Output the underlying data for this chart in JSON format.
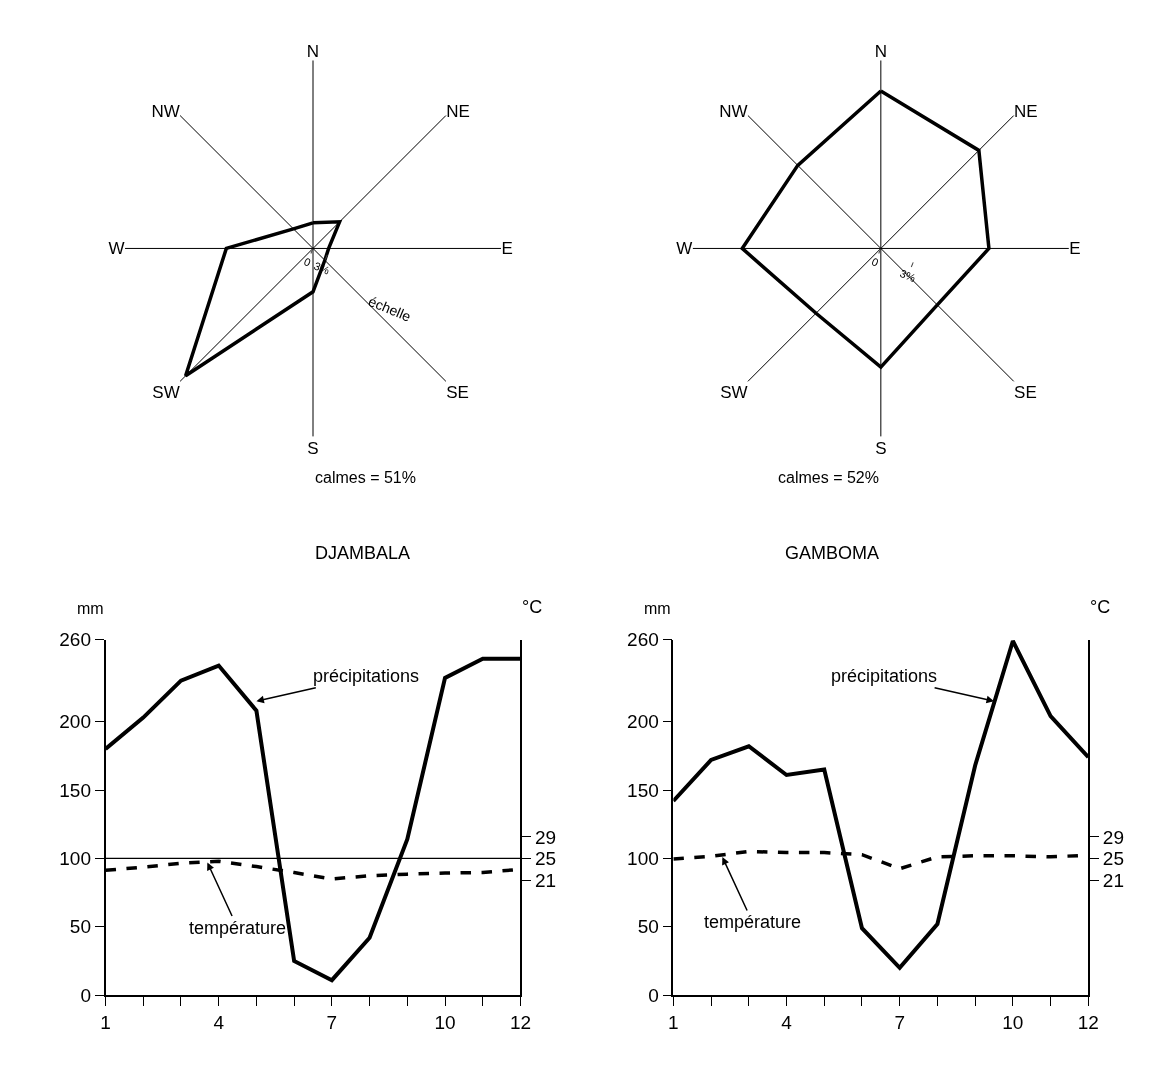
{
  "chart_data": [
    {
      "type": "radar",
      "categories": [
        "N",
        "NE",
        "E",
        "SE",
        "S",
        "SW",
        "W",
        "NW"
      ],
      "ylim": [
        0,
        36
      ],
      "yticks": [
        0,
        {
          "value": 3,
          "label": "3%"
        }
      ],
      "ylabel": "échelle",
      "annotations": [
        "calmes = 51%"
      ],
      "series": [
        {
          "color": "#000000",
          "values": [
            4.9,
            7.2,
            3.0,
            3.2,
            8.3,
            34.5,
            16.6,
            5.3
          ]
        }
      ]
    },
    {
      "type": "radar",
      "categories": [
        "N",
        "NE",
        "E",
        "SE",
        "S",
        "SW",
        "W",
        "NW"
      ],
      "ylim": [
        0,
        16
      ],
      "yticks": [
        0,
        {
          "value": 3,
          "label": "3%"
        }
      ],
      "annotations": [
        "calmes = 52%"
      ],
      "series": [
        {
          "color": "#000000",
          "values": [
            13.4,
            11.8,
            9.2,
            6.8,
            10.1,
            7.8,
            11.8,
            10.0
          ]
        }
      ]
    },
    {
      "type": "line",
      "title": "DJAMBALA",
      "ylabel": "mm",
      "y2label": "°C",
      "x": [
        1,
        2,
        3,
        4,
        5,
        6,
        7,
        8,
        9,
        10,
        11,
        12
      ],
      "xlim": [
        1,
        12
      ],
      "xticks": [
        1,
        {
          "value": 2,
          "label": null
        },
        {
          "value": 3,
          "label": null
        },
        4,
        {
          "value": 5,
          "label": null
        },
        {
          "value": 6,
          "label": null
        },
        7,
        {
          "value": 8,
          "label": null
        },
        {
          "value": 9,
          "label": null
        },
        10,
        {
          "value": 11,
          "label": null
        },
        12
      ],
      "ylim": [
        0,
        260
      ],
      "yticks": [
        0,
        50,
        100,
        150,
        200,
        260
      ],
      "y2lim": [
        -0.3,
        65.5
      ],
      "y2ticks": [
        21,
        25,
        29
      ],
      "ref_lines": [
        {
          "axis": "y",
          "value": 100,
          "color": "#000000"
        }
      ],
      "annotations": [
        {
          "text": "précipitations",
          "x": 5,
          "y": 215
        },
        {
          "text": "température",
          "x": 3.7,
          "y": 97
        }
      ],
      "series": [
        {
          "color": "#000000",
          "line_style": "solid",
          "values": [
            180,
            203,
            230,
            241,
            208,
            25,
            11,
            42,
            114,
            232,
            246,
            246
          ]
        },
        {
          "color": "#000000",
          "line_style": "dashed",
          "axis": "y2",
          "values": [
            22.8,
            23.4,
            24.1,
            24.5,
            23.5,
            22.4,
            21.2,
            21.8,
            22.1,
            22.3,
            22.4,
            23.0
          ]
        }
      ]
    },
    {
      "type": "line",
      "title": "GAMBOMA",
      "ylabel": "mm",
      "y2label": "°C",
      "x": [
        1,
        2,
        3,
        4,
        5,
        6,
        7,
        8,
        9,
        10,
        11,
        12
      ],
      "xlim": [
        1,
        12
      ],
      "xticks": [
        1,
        {
          "value": 2,
          "label": null
        },
        {
          "value": 3,
          "label": null
        },
        4,
        {
          "value": 5,
          "label": null
        },
        {
          "value": 6,
          "label": null
        },
        7,
        {
          "value": 8,
          "label": null
        },
        {
          "value": 9,
          "label": null
        },
        10,
        {
          "value": 11,
          "label": null
        },
        12
      ],
      "ylim": [
        0,
        260
      ],
      "yticks": [
        0,
        50,
        100,
        150,
        200,
        260
      ],
      "y2lim": [
        -0.3,
        65.5
      ],
      "y2ticks": [
        21,
        25,
        29
      ],
      "annotations": [
        {
          "text": "précipitations",
          "x": 9.5,
          "y": 215
        },
        {
          "text": "température",
          "x": 2.3,
          "y": 101
        }
      ],
      "series": [
        {
          "color": "#000000",
          "line_style": "solid",
          "values": [
            142,
            172,
            182,
            161,
            165,
            49,
            20,
            52,
            168,
            259,
            204,
            174
          ]
        },
        {
          "color": "#000000",
          "line_style": "dashed",
          "axis": "y2",
          "values": [
            24.9,
            25.4,
            26.3,
            26.1,
            26.1,
            25.7,
            23.1,
            25.3,
            25.5,
            25.5,
            25.3,
            25.6
          ]
        }
      ]
    }
  ]
}
